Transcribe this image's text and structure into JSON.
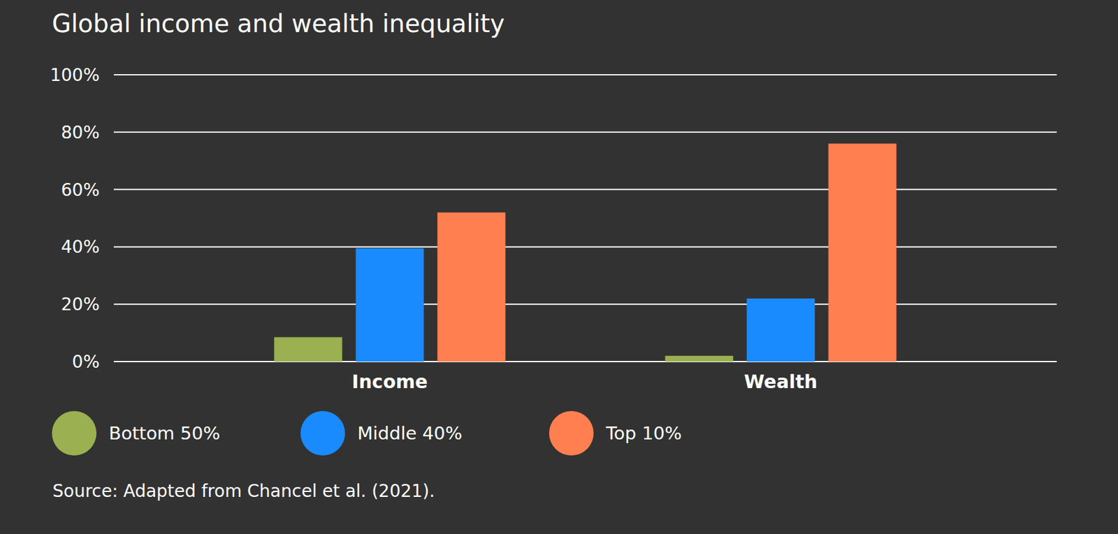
{
  "chart_data": {
    "type": "bar",
    "title": "Global income and wealth inequality",
    "source": "Source: Adapted from Chancel et al. (2021).",
    "categories": [
      "Income",
      "Wealth"
    ],
    "series": [
      {
        "name": "Bottom 50%",
        "color": "#9bb050",
        "values": [
          8.5,
          2
        ]
      },
      {
        "name": "Middle 40%",
        "color": "#1a8bff",
        "values": [
          39.5,
          22
        ]
      },
      {
        "name": "Top 10%",
        "color": "#ff7f50",
        "values": [
          52,
          76
        ]
      }
    ],
    "ylim": [
      0,
      100
    ],
    "yticks": [
      {
        "value": 0,
        "label": "0%"
      },
      {
        "value": 20,
        "label": "20%"
      },
      {
        "value": 40,
        "label": "40%"
      },
      {
        "value": 60,
        "label": "60%"
      },
      {
        "value": 80,
        "label": "80%"
      },
      {
        "value": 100,
        "label": "100%"
      }
    ],
    "grid": true,
    "legend": "bottom"
  }
}
